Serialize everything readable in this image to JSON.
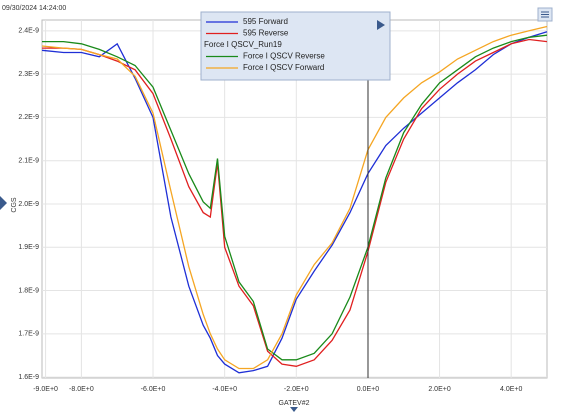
{
  "chart_data": {
    "type": "line",
    "timestamp": "09/30/2024 14:24:00",
    "xlabel": "GATEV#2",
    "ylabel": "CGS",
    "x": [
      -9.1,
      -8.5,
      -8,
      -7.5,
      -7,
      -6.5,
      -6,
      -5.5,
      -5,
      -4.6,
      -4.4,
      -4.2,
      -4,
      -3.6,
      -3.2,
      -2.8,
      -2.4,
      -2,
      -1.5,
      -1,
      -0.5,
      0,
      0.5,
      1,
      1.5,
      2,
      2.5,
      3,
      3.5,
      4,
      4.5,
      5
    ],
    "series": [
      {
        "name": "595 Forward",
        "color": "#1f2fd6",
        "values": [
          2.355e-09,
          2.35e-09,
          2.35e-09,
          2.34e-09,
          2.37e-09,
          2.29e-09,
          2.2e-09,
          1.97e-09,
          1.81e-09,
          1.72e-09,
          1.69e-09,
          1.65e-09,
          1.63e-09,
          1.61e-09,
          1.615e-09,
          1.625e-09,
          1.69e-09,
          1.78e-09,
          1.845e-09,
          1.905e-09,
          1.98e-09,
          2.07e-09,
          2.135e-09,
          2.175e-09,
          2.21e-09,
          2.245e-09,
          2.28e-09,
          2.31e-09,
          2.345e-09,
          2.37e-09,
          2.385e-09,
          2.398e-09
        ]
      },
      {
        "name": "595 Reverse",
        "color": "#e02020",
        "values": [
          2.36e-09,
          2.36e-09,
          2.357e-09,
          2.345e-09,
          2.33e-09,
          2.31e-09,
          2.255e-09,
          2.15e-09,
          2.04e-09,
          1.98e-09,
          1.97e-09,
          2.095e-09,
          1.9e-09,
          1.81e-09,
          1.765e-09,
          1.66e-09,
          1.63e-09,
          1.625e-09,
          1.64e-09,
          1.685e-09,
          1.755e-09,
          1.89e-09,
          2.05e-09,
          2.15e-09,
          2.22e-09,
          2.265e-09,
          2.3e-09,
          2.33e-09,
          2.35e-09,
          2.37e-09,
          2.38e-09,
          2.375e-09
        ]
      },
      {
        "name": "Force I QSCV Reverse",
        "color": "#1a8a1a",
        "values": [
          2.375e-09,
          2.375e-09,
          2.37e-09,
          2.357e-09,
          2.34e-09,
          2.32e-09,
          2.27e-09,
          2.17e-09,
          2.07e-09,
          2.005e-09,
          1.99e-09,
          2.105e-09,
          1.925e-09,
          1.82e-09,
          1.775e-09,
          1.665e-09,
          1.64e-09,
          1.64e-09,
          1.655e-09,
          1.7e-09,
          1.785e-09,
          1.9e-09,
          2.06e-09,
          2.165e-09,
          2.23e-09,
          2.28e-09,
          2.31e-09,
          2.34e-09,
          2.36e-09,
          2.375e-09,
          2.385e-09,
          2.39e-09
        ]
      },
      {
        "name": "Force I QSCV Forward",
        "color": "#f5a623",
        "values": [
          2.365e-09,
          2.36e-09,
          2.357e-09,
          2.345e-09,
          2.335e-09,
          2.295e-09,
          2.21e-09,
          2.03e-09,
          1.855e-09,
          1.745e-09,
          1.7e-09,
          1.665e-09,
          1.64e-09,
          1.62e-09,
          1.62e-09,
          1.64e-09,
          1.7e-09,
          1.79e-09,
          1.86e-09,
          1.91e-09,
          1.99e-09,
          2.125e-09,
          2.2e-09,
          2.245e-09,
          2.28e-09,
          2.305e-09,
          2.335e-09,
          2.355e-09,
          2.375e-09,
          2.39e-09,
          2.4e-09,
          2.41e-09
        ]
      }
    ],
    "legend_subtitle": "Force I QSCV_Run19",
    "xlim": [
      -9.1,
      5.0
    ],
    "xticks": [
      {
        "value": -9,
        "label": "-9.0E+0"
      },
      {
        "value": -8,
        "label": "-8.0E+0"
      },
      {
        "value": -6,
        "label": "-6.0E+0"
      },
      {
        "value": -4,
        "label": "-4.0E+0"
      },
      {
        "value": -2,
        "label": "-2.0E+0"
      },
      {
        "value": 0,
        "label": "0.0E+0"
      },
      {
        "value": 2,
        "label": "2.0E+0"
      },
      {
        "value": 4,
        "label": "4.0E+0"
      }
    ],
    "ylim": [
      1.598e-09,
      2.425e-09
    ],
    "yticks": [
      {
        "value": 1.6e-09,
        "label": "1.6E-9"
      },
      {
        "value": 1.7e-09,
        "label": "1.7E-9"
      },
      {
        "value": 1.8e-09,
        "label": "1.8E-9"
      },
      {
        "value": 1.9e-09,
        "label": "1.9E-9"
      },
      {
        "value": 2e-09,
        "label": "2.0E-9"
      },
      {
        "value": 2.1e-09,
        "label": "2.1E-9"
      },
      {
        "value": 2.2e-09,
        "label": "2.2E-9"
      },
      {
        "value": 2.3e-09,
        "label": "2.3E-9"
      },
      {
        "value": 2.4e-09,
        "label": "2.4E-9"
      }
    ],
    "grid": true
  }
}
